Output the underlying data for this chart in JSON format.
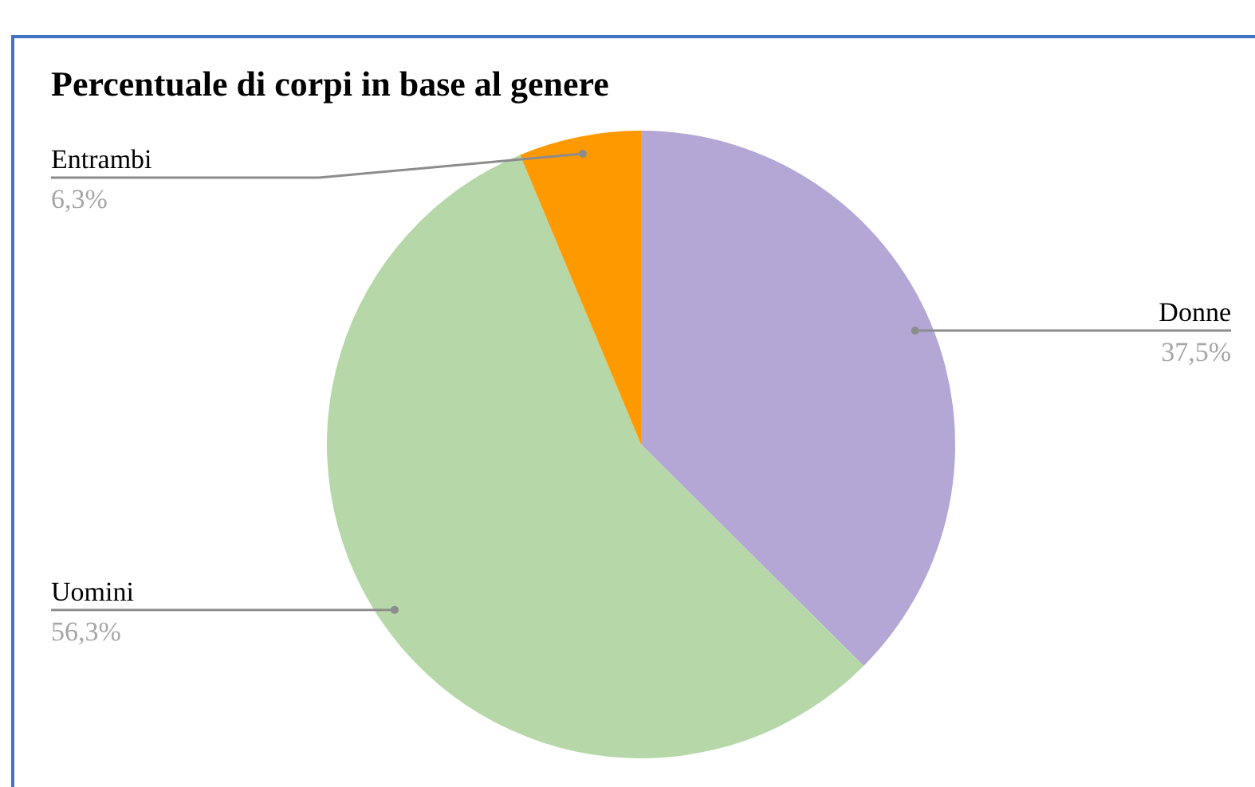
{
  "chart_data": {
    "type": "pie",
    "title": "Percentuale di corpi in base al genere",
    "categories": [
      "Donne",
      "Uomini",
      "Entrambi"
    ],
    "values": [
      37.5,
      56.3,
      6.3
    ],
    "colors": [
      "#b4a7d6",
      "#b6d7a8",
      "#ff9900"
    ],
    "value_labels": [
      "37,5%",
      "56,3%",
      "6,3%"
    ]
  }
}
